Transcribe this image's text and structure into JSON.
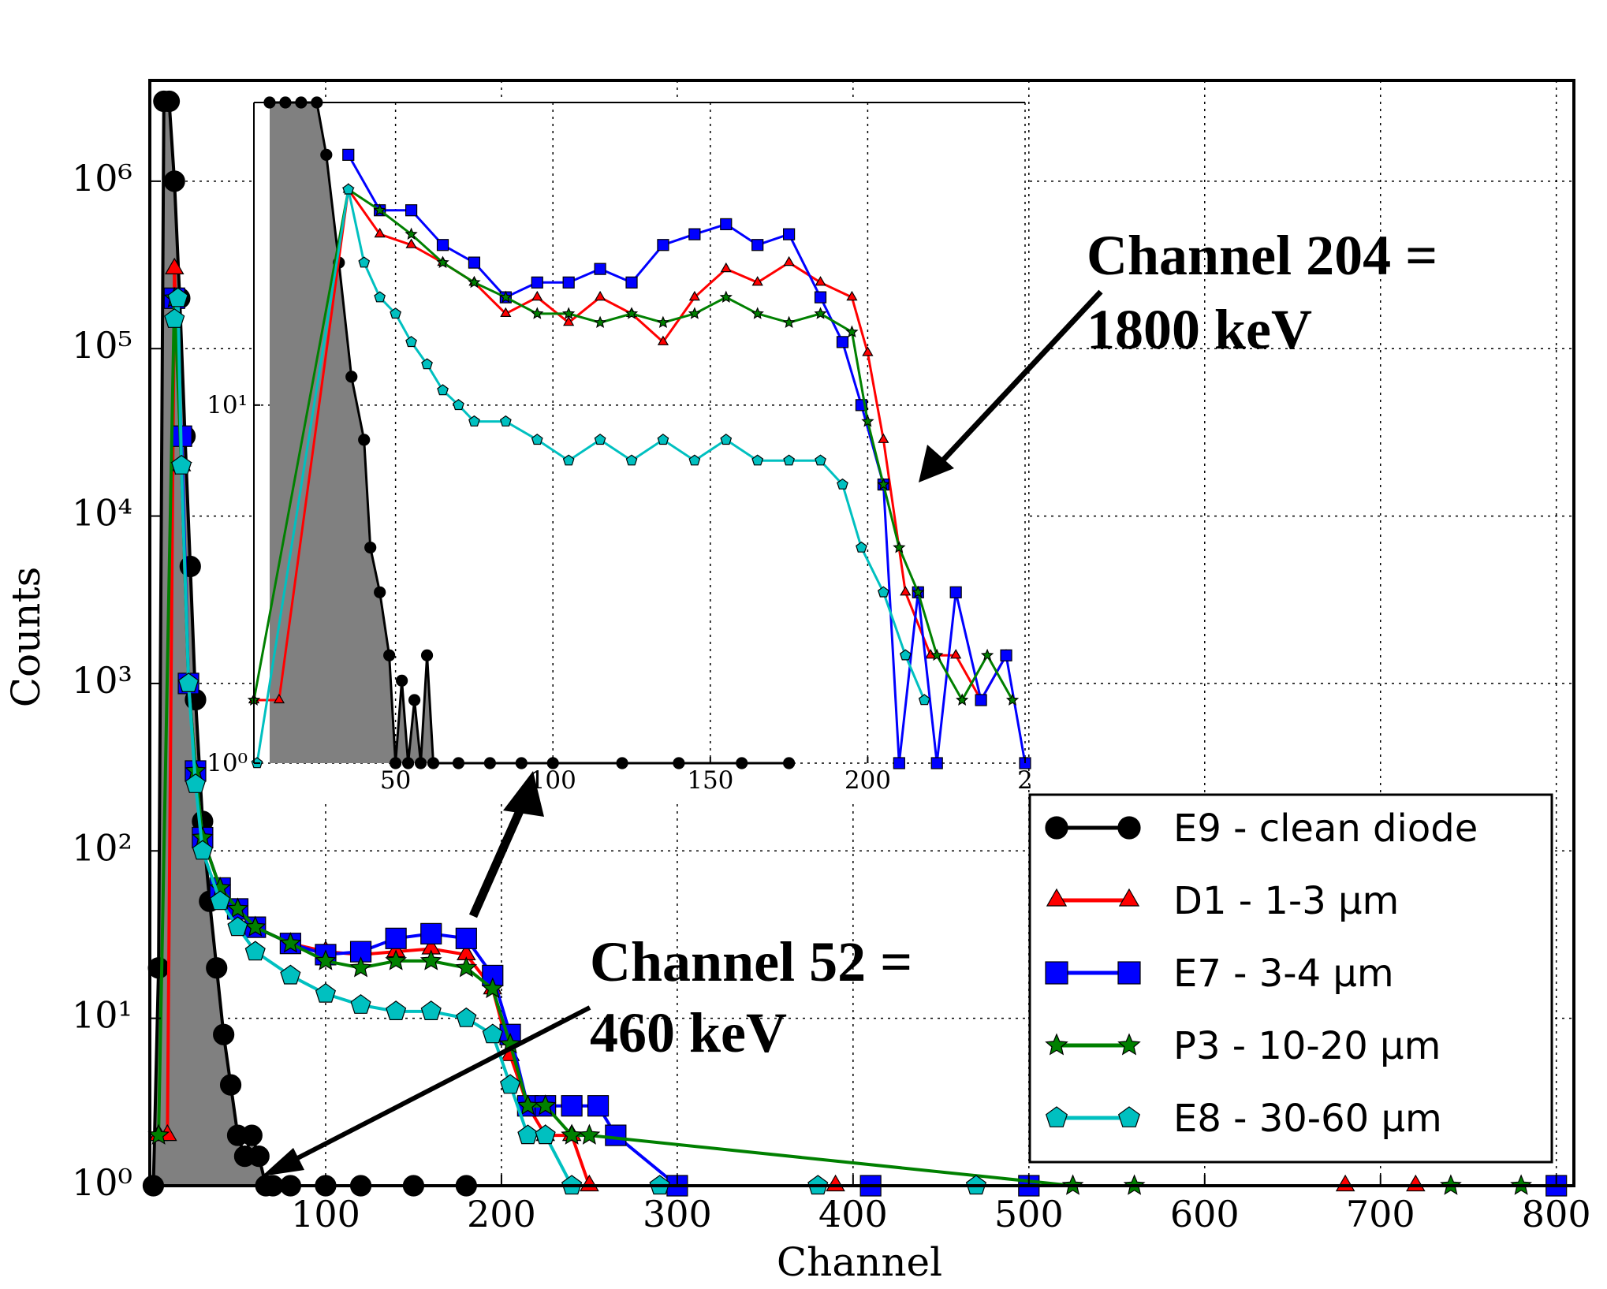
{
  "chart_data": [
    {
      "type": "line",
      "xlabel": "Channel",
      "ylabel": "Counts",
      "yscale": "log",
      "xlim": [
        0,
        810
      ],
      "ylim": [
        1,
        4000000
      ],
      "xticks": [
        "100",
        "200",
        "300",
        "400",
        "500",
        "600",
        "700",
        "800"
      ],
      "yticks": [
        "10⁰",
        "10¹",
        "10²",
        "10³",
        "10⁴",
        "10⁵",
        "10⁶"
      ],
      "grid": true,
      "legend_position": "lower-right",
      "series": [
        {
          "name": "E9 - clean diode",
          "color": "#000000",
          "marker": "circle",
          "fill_under": "#808080",
          "x": [
            2,
            5,
            8,
            11,
            14,
            17,
            20,
            23,
            26,
            30,
            34,
            38,
            42,
            46,
            50,
            54,
            58,
            62,
            66,
            70,
            80,
            100,
            120,
            150,
            180
          ],
          "y": [
            1,
            20,
            3000000,
            3000000,
            1000000,
            200000,
            30000,
            5000,
            800,
            150,
            50,
            20,
            8,
            4,
            2,
            1.5,
            2,
            1.5,
            1,
            1,
            1,
            1,
            1,
            1,
            1
          ]
        },
        {
          "name": "D1 - 1-3 μm",
          "color": "#ff0000",
          "marker": "triangle",
          "x": [
            5,
            10,
            14,
            18,
            22,
            26,
            30,
            40,
            50,
            60,
            80,
            100,
            120,
            140,
            160,
            180,
            195,
            205,
            215,
            225,
            240,
            250,
            390,
            680,
            720
          ],
          "y": [
            2,
            2,
            300000,
            20000,
            1000,
            300,
            120,
            60,
            45,
            35,
            28,
            25,
            24,
            25,
            26,
            24,
            15,
            6,
            3,
            2,
            2,
            1,
            1,
            1,
            1
          ]
        },
        {
          "name": "E7 - 3-4  μm",
          "color": "#0000ff",
          "marker": "square",
          "x": [
            14,
            18,
            22,
            26,
            30,
            40,
            50,
            60,
            80,
            100,
            120,
            140,
            160,
            180,
            195,
            205,
            215,
            225,
            240,
            255,
            265,
            300,
            410,
            500,
            800
          ],
          "y": [
            200000,
            30000,
            1000,
            300,
            120,
            60,
            45,
            35,
            28,
            24,
            25,
            30,
            32,
            30,
            18,
            8,
            3,
            3,
            3,
            3,
            2,
            1,
            1,
            1,
            1
          ]
        },
        {
          "name": "P3 - 10-20  μm",
          "color": "#008000",
          "marker": "star",
          "x": [
            5,
            14,
            18,
            22,
            26,
            30,
            40,
            50,
            60,
            80,
            100,
            120,
            140,
            160,
            180,
            195,
            205,
            215,
            225,
            240,
            250,
            525,
            560,
            740,
            780
          ],
          "y": [
            2,
            200000,
            20000,
            1000,
            300,
            120,
            60,
            45,
            35,
            28,
            22,
            20,
            22,
            22,
            20,
            15,
            7,
            3,
            3,
            2,
            2,
            1,
            1,
            1,
            1
          ]
        },
        {
          "name": "E8 - 30-60  μm",
          "color": "#00c0c0",
          "marker": "pentagon",
          "x": [
            14,
            16,
            18,
            22,
            26,
            30,
            40,
            50,
            60,
            80,
            100,
            120,
            140,
            160,
            180,
            195,
            205,
            215,
            225,
            240,
            290,
            380,
            470
          ],
          "y": [
            150000,
            200000,
            20000,
            1000,
            250,
            100,
            50,
            35,
            25,
            18,
            14,
            12,
            11,
            11,
            10,
            8,
            4,
            2,
            2,
            1,
            1,
            1,
            1
          ]
        }
      ],
      "annotations": [
        {
          "text_lines": [
            "Channel 52 =",
            "460 keV"
          ],
          "points_to_x": 58,
          "points_to_y": 1
        },
        {
          "text_lines": [
            "Channel 204 =",
            "1800 keV"
          ]
        }
      ]
    },
    {
      "type": "line",
      "role": "inset",
      "yscale": "log",
      "xlim": [
        5,
        250
      ],
      "ylim": [
        1,
        70
      ],
      "xticks": [
        "50",
        "100",
        "150",
        "200",
        "2"
      ],
      "yticks": [
        "10⁰",
        "10¹"
      ],
      "grid": true,
      "series": [
        {
          "name": "E9 - clean diode",
          "color": "#000000",
          "marker": "circle",
          "fill_under": "#808080",
          "x": [
            10,
            15,
            20,
            25,
            28,
            32,
            36,
            40,
            42,
            45,
            48,
            50,
            52,
            54,
            56,
            58,
            60,
            62,
            70,
            80,
            90,
            100,
            122,
            140,
            160,
            175
          ],
          "y": [
            70,
            70,
            70,
            70,
            50,
            25,
            12,
            8,
            4,
            3,
            2,
            1,
            1.7,
            1,
            1.5,
            1,
            2,
            1,
            1,
            1,
            1,
            1,
            1,
            1,
            1,
            1
          ]
        },
        {
          "name": "D1 - 1-3 μm",
          "color": "#ff0000",
          "marker": "triangle",
          "x": [
            5,
            13,
            35,
            45,
            55,
            65,
            75,
            85,
            95,
            105,
            115,
            125,
            135,
            145,
            155,
            165,
            175,
            185,
            195,
            200,
            205,
            212,
            220,
            228,
            236,
            244
          ],
          "y": [
            1.5,
            1.5,
            40,
            30,
            28,
            25,
            22,
            18,
            20,
            17,
            20,
            18,
            15,
            20,
            24,
            22,
            25,
            22,
            20,
            14,
            8,
            3,
            2,
            2,
            1.5,
            2
          ]
        },
        {
          "name": "E7 - 3-4  μm",
          "color": "#0000ff",
          "marker": "square",
          "x": [
            35,
            45,
            55,
            65,
            75,
            85,
            95,
            105,
            115,
            125,
            135,
            145,
            155,
            165,
            175,
            185,
            192,
            198,
            205,
            210,
            216,
            222,
            228,
            236,
            244,
            250
          ],
          "y": [
            50,
            35,
            35,
            28,
            25,
            20,
            22,
            22,
            24,
            22,
            28,
            30,
            32,
            28,
            30,
            20,
            15,
            10,
            6,
            1,
            3,
            1,
            3,
            1.5,
            2,
            1
          ]
        },
        {
          "name": "P3 - 10-20  μm",
          "color": "#008000",
          "marker": "star",
          "x": [
            5,
            35,
            45,
            55,
            65,
            75,
            85,
            95,
            105,
            115,
            125,
            135,
            145,
            155,
            165,
            175,
            185,
            195,
            200,
            205,
            210,
            216,
            222,
            230,
            238,
            246
          ],
          "y": [
            1.5,
            40,
            35,
            30,
            25,
            22,
            20,
            18,
            18,
            17,
            18,
            17,
            18,
            20,
            18,
            17,
            18,
            16,
            9,
            6,
            4,
            3,
            2,
            1.5,
            2,
            1.5
          ]
        },
        {
          "name": "E8 - 30-60  μm",
          "color": "#00c0c0",
          "marker": "pentagon",
          "x": [
            6,
            35,
            40,
            45,
            50,
            55,
            60,
            65,
            70,
            75,
            85,
            95,
            105,
            115,
            125,
            135,
            145,
            155,
            165,
            175,
            185,
            192,
            198,
            205,
            212,
            218
          ],
          "y": [
            1,
            40,
            25,
            20,
            18,
            15,
            13,
            11,
            10,
            9,
            9,
            8,
            7,
            8,
            7,
            8,
            7,
            8,
            7,
            7,
            7,
            6,
            4,
            3,
            2,
            1.5
          ]
        }
      ]
    }
  ]
}
